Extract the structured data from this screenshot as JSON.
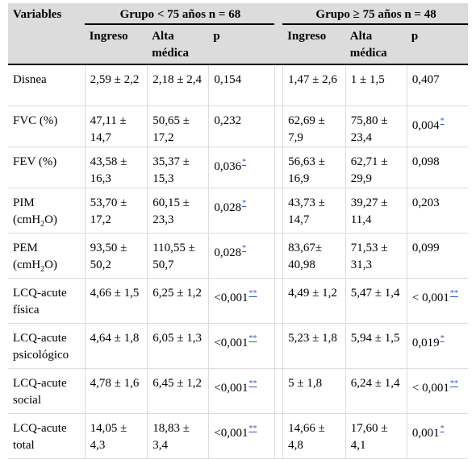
{
  "header": {
    "variables": "Variables",
    "group1": "Grupo < 75 años n = 68",
    "group2": "Grupo ≥ 75 años n = 48",
    "ingreso": "Ingreso",
    "alta": "Alta médica",
    "p": "p"
  },
  "rows": [
    {
      "name_pre": "Disnea",
      "sub": "",
      "name_post": "",
      "g1_in": "2,59 ± 2,2",
      "g1_alta": "2,18 ± 2,4",
      "g1_p": "0,154",
      "g1_sig": "",
      "g2_in": "1,47 ± 2,6",
      "g2_alta": "1 ± 1,5",
      "g2_p": "0,407",
      "g2_sig": ""
    },
    {
      "name_pre": "FVC (%)",
      "sub": "",
      "name_post": "",
      "g1_in": "47,11 ± 14,7",
      "g1_alta": "50,65 ± 17,2",
      "g1_p": "0,232",
      "g1_sig": "",
      "g2_in": "62,69 ± 7,9",
      "g2_alta": "75,80 ± 23,4",
      "g2_p": "0,004",
      "g2_sig": "*"
    },
    {
      "name_pre": "FEV (%)",
      "sub": "",
      "name_post": "",
      "g1_in": "43,58 ± 16,3",
      "g1_alta": "35,37 ± 15,3",
      "g1_p": "0,036",
      "g1_sig": "*",
      "g2_in": "56,63 ± 16,9",
      "g2_alta": "62,71 ± 29,9",
      "g2_p": "0,098",
      "g2_sig": ""
    },
    {
      "name_pre": "PIM (cmH",
      "sub": "2",
      "name_post": "O)",
      "g1_in": "53,70 ± 17,2",
      "g1_alta": "60,15 ± 23,3",
      "g1_p": "0,028",
      "g1_sig": "*",
      "g2_in": "43,73 ± 14,7",
      "g2_alta": "39,27 ± 11,4",
      "g2_p": "0,203",
      "g2_sig": ""
    },
    {
      "name_pre": "PEM (cmH",
      "sub": "2",
      "name_post": "O)",
      "g1_in": "93,50 ± 50,2",
      "g1_alta": "110,55 ± 50,7",
      "g1_p": "0,028",
      "g1_sig": "*",
      "g2_in": "83,67± 40,98",
      "g2_alta": "71,53 ± 31,3",
      "g2_p": "0,099",
      "g2_sig": ""
    },
    {
      "name_pre": "LCQ-acute física",
      "sub": "",
      "name_post": "",
      "g1_in": "4,66 ± 1,5",
      "g1_alta": "6,25 ± 1,2",
      "g1_p": "<0,001",
      "g1_sig": "**",
      "g2_in": "4,49 ± 1,2",
      "g2_alta": "5,47 ± 1,4",
      "g2_p": "< 0,001",
      "g2_sig": "**"
    },
    {
      "name_pre": "LCQ-acute psicológico",
      "sub": "",
      "name_post": "",
      "g1_in": "4,64 ± 1,8",
      "g1_alta": "6,05 ± 1,3",
      "g1_p": "<0,001",
      "g1_sig": "**",
      "g2_in": "5,23 ± 1,8",
      "g2_alta": "5,94 ± 1,5",
      "g2_p": "0,019",
      "g2_sig": "*"
    },
    {
      "name_pre": "LCQ-acute social",
      "sub": "",
      "name_post": "",
      "g1_in": "4,78 ± 1,6",
      "g1_alta": "6,45 ± 1,2",
      "g1_p": "<0,001",
      "g1_sig": "**",
      "g2_in": "5 ± 1,8",
      "g2_alta": "6,24 ± 1,4",
      "g2_p": "< 0,001",
      "g2_sig": "**"
    },
    {
      "name_pre": "LCQ-acute total",
      "sub": "",
      "name_post": "",
      "g1_in": "14,05 ± 4,3",
      "g1_alta": "18,83 ± 3,4",
      "g1_p": "<0,001",
      "g1_sig": "**",
      "g2_in": "14,66 ± 4,8",
      "g2_alta": "17,60 ± 4,1",
      "g2_p": "0,001",
      "g2_sig": "*"
    }
  ]
}
